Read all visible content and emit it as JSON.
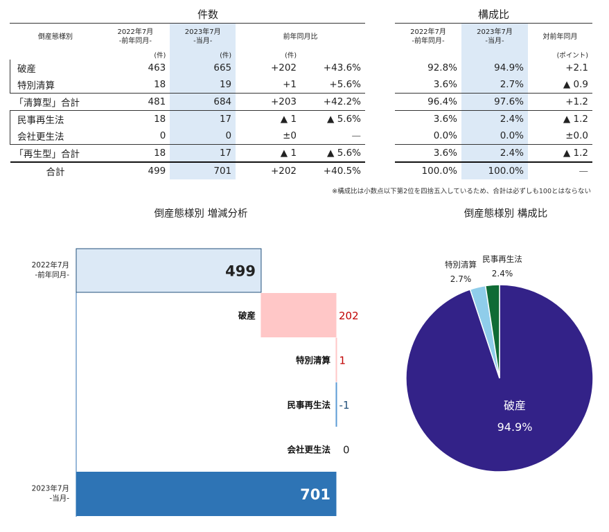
{
  "count_table": {
    "title": "件数",
    "headers": [
      "倒産態様別",
      "2022年7月\n-前年同月-",
      "2023年7月\n-当月-",
      "前年同月比"
    ],
    "unit_row": [
      "(件)",
      "(件)",
      "(件)"
    ],
    "rows": [
      {
        "label": "破産",
        "prev": "463",
        "curr": "665",
        "diff": "+202",
        "pct": "+43.6%"
      },
      {
        "label": "特別清算",
        "prev": "18",
        "curr": "19",
        "diff": "+1",
        "pct": "+5.6%"
      },
      {
        "label": "「清算型」合計",
        "prev": "481",
        "curr": "684",
        "diff": "+203",
        "pct": "+42.2%"
      },
      {
        "label": "民事再生法",
        "prev": "18",
        "curr": "17",
        "diff": "▲ 1",
        "pct": "▲ 5.6%"
      },
      {
        "label": "会社更生法",
        "prev": "0",
        "curr": "0",
        "diff": "±0",
        "pct": "—"
      },
      {
        "label": "「再生型」合計",
        "prev": "18",
        "curr": "17",
        "diff": "▲ 1",
        "pct": "▲ 5.6%"
      },
      {
        "label": "合計",
        "prev": "499",
        "curr": "701",
        "diff": "+202",
        "pct": "+40.5%"
      }
    ]
  },
  "ratio_table": {
    "title": "構成比",
    "headers": [
      "2022年7月\n-前年同月-",
      "2023年7月\n-当月-",
      "対前年同月"
    ],
    "unit": "(ポイント)",
    "rows": [
      {
        "prev": "92.8%",
        "curr": "94.9%",
        "diff": "+2.1"
      },
      {
        "prev": "3.6%",
        "curr": "2.7%",
        "diff": "▲ 0.9"
      },
      {
        "prev": "96.4%",
        "curr": "97.6%",
        "diff": "+1.2"
      },
      {
        "prev": "3.6%",
        "curr": "2.4%",
        "diff": "▲ 1.2"
      },
      {
        "prev": "0.0%",
        "curr": "0.0%",
        "diff": "±0.0"
      },
      {
        "prev": "3.6%",
        "curr": "2.4%",
        "diff": "▲ 1.2"
      },
      {
        "prev": "100.0%",
        "curr": "100.0%",
        "diff": "—"
      }
    ]
  },
  "note": "※構成比は小数点以下第2位を四捨五入しているため、合計は必ずしも100とはならない",
  "colors": {
    "highlight": "#dce9f6",
    "start_bar": "#dce9f6",
    "start_border": "#2e6fb0",
    "increase": "#ffc7c7",
    "end_bar": "#2e74b5",
    "pie_main": "#332288",
    "pie_light": "#8fcdea",
    "pie_green": "#0f6b35",
    "red_text": "#c00000",
    "blue_text": "#1f4e79"
  },
  "chart_data": [
    {
      "type": "bar",
      "subtype": "waterfall",
      "title": "倒産態様別 増減分析",
      "categories": [
        "2022年7月\n-前年同月-",
        "破産",
        "特別清算",
        "民事再生法",
        "会社更生法",
        "2023年7月\n-当月-"
      ],
      "values": [
        499,
        202,
        1,
        -1,
        0,
        701
      ],
      "labels": [
        "499",
        "202",
        "1",
        "-1",
        "0",
        "701"
      ]
    },
    {
      "type": "pie",
      "title": "倒産態様別 構成比",
      "categories": [
        "破産",
        "特別清算",
        "民事再生法"
      ],
      "values": [
        94.9,
        2.7,
        2.4
      ],
      "labels": [
        "94.9%",
        "2.7%",
        "2.4%"
      ]
    }
  ]
}
